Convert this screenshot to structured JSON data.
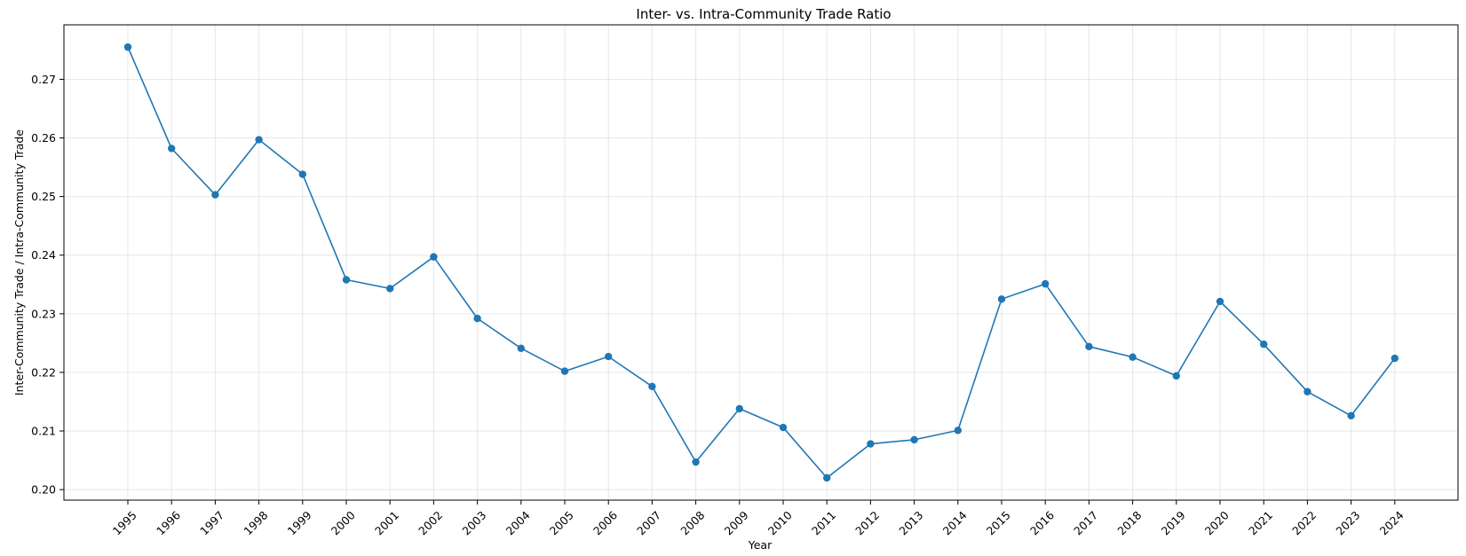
{
  "chart_data": {
    "type": "line",
    "title": "Inter- vs. Intra-Community Trade Ratio",
    "xlabel": "Year",
    "ylabel": "Inter-Community Trade / Intra-Community Trade",
    "x": [
      "1995",
      "1996",
      "1997",
      "1998",
      "1999",
      "2000",
      "2001",
      "2002",
      "2003",
      "2004",
      "2005",
      "2006",
      "2007",
      "2008",
      "2009",
      "2010",
      "2011",
      "2012",
      "2013",
      "2014",
      "2015",
      "2016",
      "2017",
      "2018",
      "2019",
      "2020",
      "2021",
      "2022",
      "2023",
      "2024"
    ],
    "series": [
      {
        "color": "#1f77b4",
        "values": [
          0.2755,
          0.2582,
          0.2503,
          0.2597,
          0.2538,
          0.2358,
          0.2343,
          0.2397,
          0.2292,
          0.2241,
          0.2202,
          0.2227,
          0.2176,
          0.2047,
          0.2138,
          0.2106,
          0.202,
          0.2078,
          0.2085,
          0.2101,
          0.2325,
          0.2351,
          0.2244,
          0.2226,
          0.2194,
          0.2321,
          0.2248,
          0.2167,
          0.2126,
          0.2224
        ]
      }
    ],
    "yticks": [
      "0.20",
      "0.21",
      "0.22",
      "0.23",
      "0.24",
      "0.25",
      "0.26",
      "0.27"
    ],
    "ylim": [
      0.1982,
      0.2793
    ],
    "grid": true,
    "legend": "none"
  }
}
